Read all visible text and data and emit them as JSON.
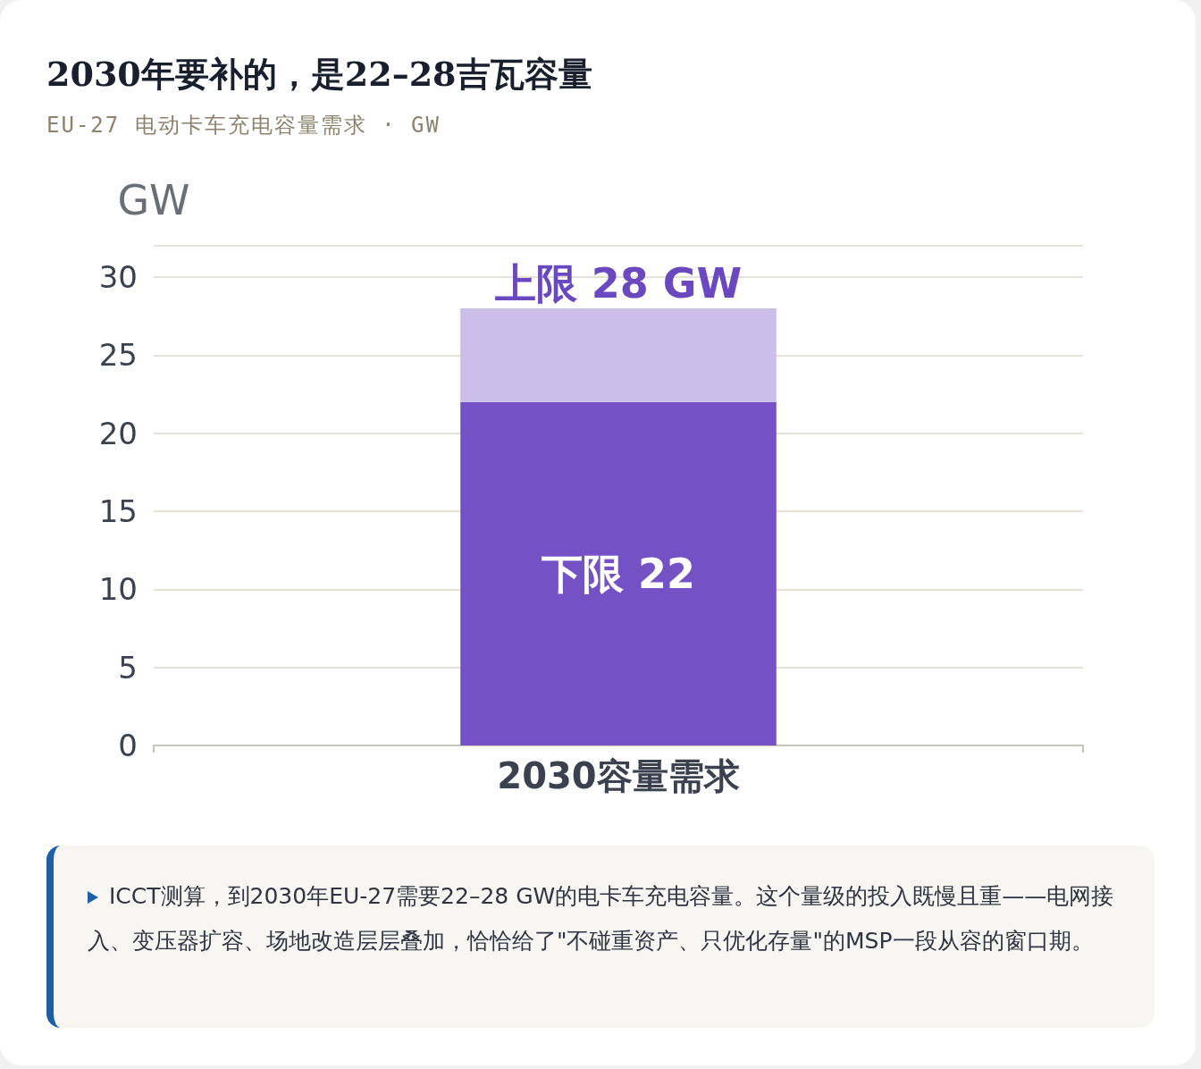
{
  "chart_data": {
    "type": "bar",
    "title": "2030年要补的，是22–28吉瓦容量",
    "subtitle": "EU-27 电动卡车充电容量需求 · GW",
    "ylabel": "GW",
    "categories": [
      "2030容量需求"
    ],
    "stacked": true,
    "series": [
      {
        "color": "#7452c6",
        "values": [
          22
        ],
        "value_labels": [
          "下限 22"
        ]
      },
      {
        "color": "#cbbfea",
        "values": [
          6
        ],
        "value_labels": [
          "上限 28 GW"
        ]
      }
    ],
    "ylim": [
      0,
      32
    ],
    "yticks": [
      0,
      5,
      10,
      15,
      20,
      25,
      30
    ],
    "grid": "y",
    "annotations": [
      "ICCT测算，到2030年EU-27需要22–28 GW的电卡车充电容量。这个量级的投入既慢且重——电网接入、变压器扩容、场地改造层层叠加，恰恰给了\"不碰重资产、只优化存量\"的MSP一段从容的窗口期。"
    ]
  }
}
